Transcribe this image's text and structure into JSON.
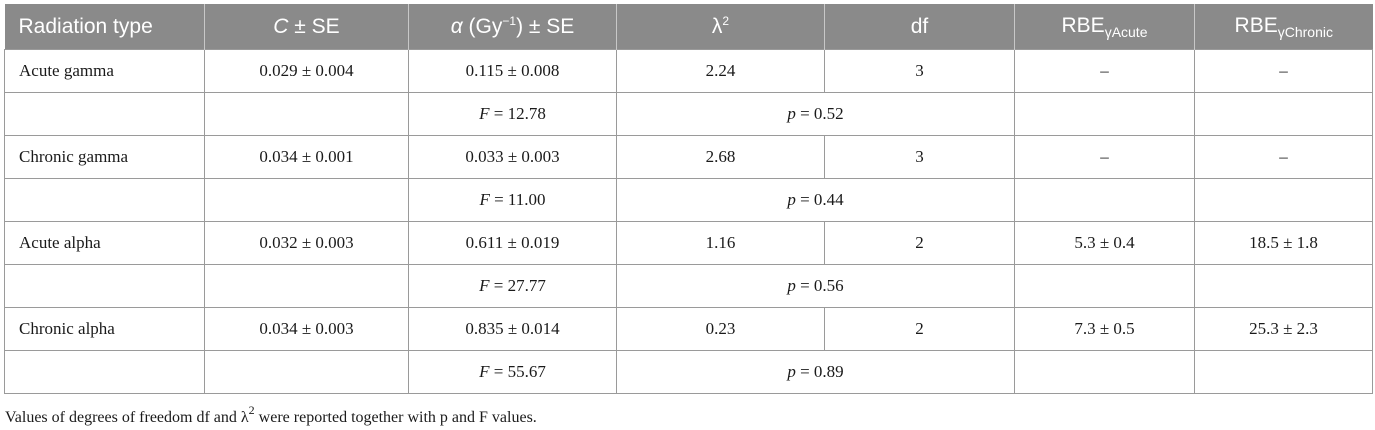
{
  "header": {
    "radiation_type": "Radiation type",
    "c_se_var": "C",
    "c_se_rest": " ± SE",
    "alpha_var": "α",
    "alpha_unit_pre": " (Gy",
    "alpha_unit_sup": "−1",
    "alpha_unit_post": ") ± SE",
    "lambda_base": "λ",
    "lambda_sup": "2",
    "df": "df",
    "rbe_base": "RBE",
    "rbe_acute_sub": "γAcute",
    "rbe_chronic_sub": "γChronic"
  },
  "rows": [
    {
      "type": "Acute gamma",
      "c": "0.029 ± 0.004",
      "alpha": "0.115 ± 0.008",
      "lambda2": "2.24",
      "df": "3",
      "rbe_acute": "–",
      "rbe_chronic": "–",
      "f_var": "F",
      "f_val": " = 12.78",
      "p_var": "p",
      "p_val": " = 0.52"
    },
    {
      "type": "Chronic gamma",
      "c": "0.034 ± 0.001",
      "alpha": "0.033 ± 0.003",
      "lambda2": "2.68",
      "df": "3",
      "rbe_acute": "–",
      "rbe_chronic": "–",
      "f_var": "F",
      "f_val": " = 11.00",
      "p_var": "p",
      "p_val": " = 0.44"
    },
    {
      "type": "Acute alpha",
      "c": "0.032 ± 0.003",
      "alpha": "0.611 ± 0.019",
      "lambda2": "1.16",
      "df": "2",
      "rbe_acute": "5.3 ± 0.4",
      "rbe_chronic": "18.5 ± 1.8",
      "f_var": "F",
      "f_val": " = 27.77",
      "p_var": "p",
      "p_val": " = 0.56"
    },
    {
      "type": "Chronic alpha",
      "c": "0.034 ± 0.003",
      "alpha": "0.835 ± 0.014",
      "lambda2": "0.23",
      "df": "2",
      "rbe_acute": "7.3 ± 0.5",
      "rbe_chronic": "25.3 ± 2.3",
      "f_var": "F",
      "f_val": " = 55.67",
      "p_var": "p",
      "p_val": " = 0.89"
    }
  ],
  "footnote": {
    "pre": "Values of degrees of freedom df and λ",
    "sup": "2",
    "post": " were reported together with p and F values."
  }
}
